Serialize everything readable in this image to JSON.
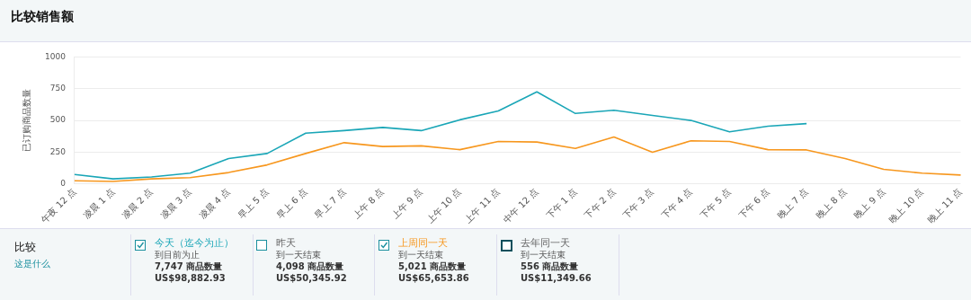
{
  "chart_data": {
    "type": "line",
    "title": "比较销售额",
    "ylabel": "已订购商品数量",
    "categories": [
      "午夜 12 点",
      "凌晨 1 点",
      "凌晨 2 点",
      "凌晨 3 点",
      "凌晨 4 点",
      "早上 5 点",
      "早上 6 点",
      "早上 7 点",
      "上午 8 点",
      "上午 9 点",
      "上午 10 点",
      "上午 11 点",
      "中午 12 点",
      "下午 1 点",
      "下午 2 点",
      "下午 3 点",
      "下午 4 点",
      "下午 5 点",
      "下午 6 点",
      "晚上 7 点",
      "晚上 8 点",
      "晚上 9 点",
      "晚上 10 点",
      "晚上 11 点"
    ],
    "series": [
      {
        "name": "今天（迄今为止）",
        "color": "#1aa6b7",
        "values": [
          75,
          40,
          55,
          85,
          200,
          240,
          400,
          420,
          445,
          420,
          505,
          575,
          725,
          555,
          580,
          540,
          500,
          410,
          455,
          475,
          null,
          null,
          null,
          null
        ]
      },
      {
        "name": "昨天",
        "values": [
          null,
          null,
          null,
          null,
          null,
          null,
          null,
          null,
          null,
          null,
          null,
          null,
          null,
          null,
          null,
          null,
          null,
          null,
          null,
          null,
          null,
          null,
          null,
          null
        ]
      },
      {
        "name": "上周同一天",
        "color": "#f7971e",
        "values": [
          25,
          20,
          40,
          50,
          90,
          150,
          240,
          325,
          295,
          300,
          270,
          335,
          330,
          280,
          370,
          250,
          340,
          335,
          270,
          268,
          200,
          115,
          85,
          70
        ]
      },
      {
        "name": "去年同一天",
        "values": [
          null,
          null,
          null,
          null,
          null,
          null,
          null,
          null,
          null,
          null,
          null,
          null,
          null,
          null,
          null,
          null,
          null,
          null,
          null,
          null,
          null,
          null,
          null,
          null
        ]
      }
    ],
    "ylim": [
      0,
      1000
    ],
    "yticks": [
      0,
      250,
      500,
      750,
      1000
    ],
    "grid": "y",
    "legend": "bottom",
    "marker": "none",
    "line_style": "solid",
    "legend_title": "比较",
    "annotations": [
      "这是什么",
      "到目前为止",
      "7,747 商品数量",
      "US$98,882.93",
      "到一天结束",
      "4,098 商品数量",
      "US$50,345.92",
      "到一天结束",
      "5,021 商品数量",
      "US$65,653.86",
      "到一天结束",
      "556 商品数量",
      "US$11,349.66"
    ]
  }
}
